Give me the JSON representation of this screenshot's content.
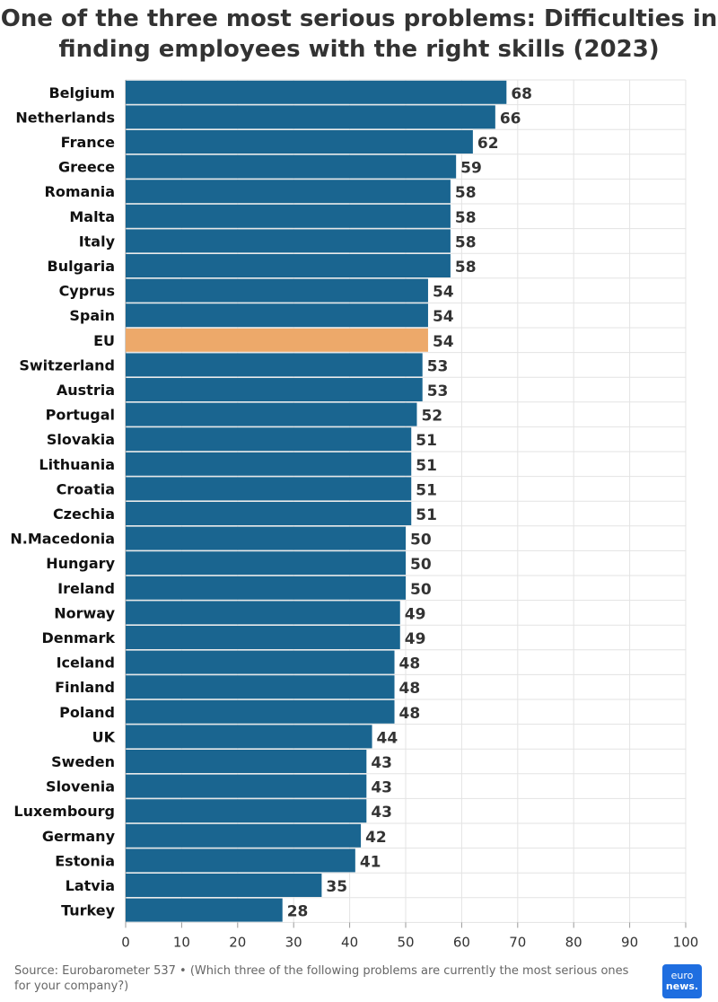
{
  "title": "One of the three most serious problems: Difficulties in finding employees with the right skills (2023)",
  "source": "Source: Eurobarometer 537 • (Which three of the following problems are currently the most serious ones for your company?)",
  "logo": {
    "line1": "euro",
    "line2": "news."
  },
  "colors": {
    "bar": "#1a6590",
    "highlight": "#eda96a",
    "grid": "#e3e3e3",
    "label": "#111111",
    "value": "#333333"
  },
  "chart_data": {
    "type": "bar",
    "orientation": "horizontal",
    "title": "One of the three most serious problems: Difficulties in finding employees with the right skills (2023)",
    "xlabel": "",
    "ylabel": "",
    "xlim": [
      0,
      100
    ],
    "ticks": [
      0,
      10,
      20,
      30,
      40,
      50,
      60,
      70,
      80,
      90,
      100
    ],
    "grid": true,
    "highlight": "EU",
    "categories": [
      "Belgium",
      "Netherlands",
      "France",
      "Greece",
      "Romania",
      "Malta",
      "Italy",
      "Bulgaria",
      "Cyprus",
      "Spain",
      "EU",
      "Switzerland",
      "Austria",
      "Portugal",
      "Slovakia",
      "Lithuania",
      "Croatia",
      "Czechia",
      "N.Macedonia",
      "Hungary",
      "Ireland",
      "Norway",
      "Denmark",
      "Iceland",
      "Finland",
      "Poland",
      "UK",
      "Sweden",
      "Slovenia",
      "Luxembourg",
      "Germany",
      "Estonia",
      "Latvia",
      "Turkey"
    ],
    "values": [
      68,
      66,
      62,
      59,
      58,
      58,
      58,
      58,
      54,
      54,
      54,
      53,
      53,
      52,
      51,
      51,
      51,
      51,
      50,
      50,
      50,
      49,
      49,
      48,
      48,
      48,
      44,
      43,
      43,
      43,
      42,
      41,
      35,
      28
    ]
  }
}
